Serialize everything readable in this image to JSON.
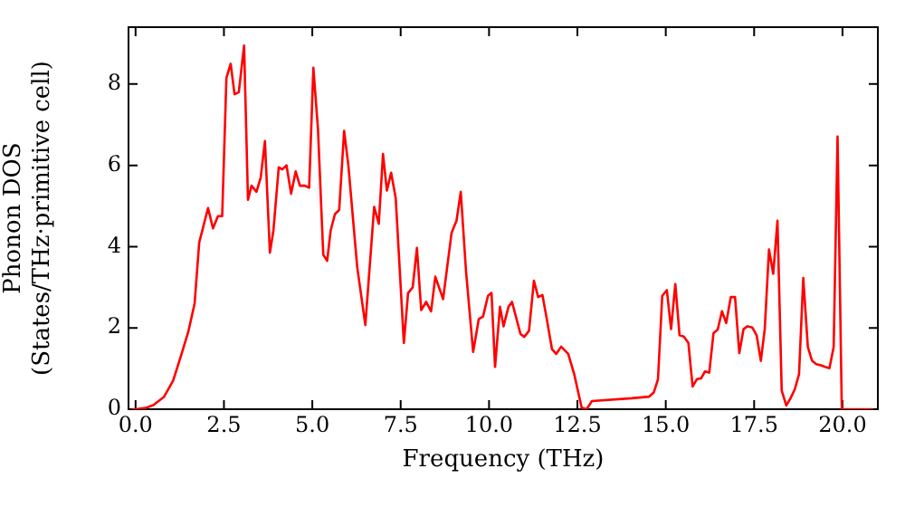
{
  "chart_data": {
    "type": "line",
    "xlabel": "Frequency (THz)",
    "ylabel": "Phonon DOS\n(States/THz·primitive cell)",
    "series": [
      {
        "color": "#ff0000",
        "x": [
          -0.1,
          0.0,
          0.28,
          0.5,
          0.8,
          1.06,
          1.28,
          1.49,
          1.67,
          1.8,
          2.05,
          2.19,
          2.33,
          2.45,
          2.57,
          2.69,
          2.8,
          2.92,
          3.07,
          3.18,
          3.28,
          3.42,
          3.54,
          3.66,
          3.8,
          3.9,
          4.05,
          4.15,
          4.27,
          4.4,
          4.53,
          4.65,
          4.79,
          4.91,
          5.03,
          5.16,
          5.31,
          5.42,
          5.52,
          5.64,
          5.76,
          5.9,
          6.02,
          6.27,
          6.5,
          6.75,
          6.88,
          7.0,
          7.11,
          7.23,
          7.36,
          7.59,
          7.71,
          7.84,
          7.96,
          8.08,
          8.22,
          8.36,
          8.48,
          8.7,
          8.94,
          9.08,
          9.2,
          9.35,
          9.55,
          9.71,
          9.83,
          9.97,
          10.07,
          10.17,
          10.31,
          10.41,
          10.55,
          10.65,
          10.89,
          11.0,
          11.13,
          11.27,
          11.39,
          11.51,
          11.64,
          11.78,
          11.9,
          12.04,
          12.24,
          12.41,
          12.62,
          12.76,
          12.91,
          14.04,
          14.53,
          14.66,
          14.78,
          14.9,
          15.03,
          15.15,
          15.27,
          15.39,
          15.51,
          15.64,
          15.76,
          15.88,
          16.0,
          16.11,
          16.23,
          16.35,
          16.47,
          16.59,
          16.71,
          16.84,
          16.96,
          17.08,
          17.2,
          17.31,
          17.45,
          17.57,
          17.69,
          17.8,
          17.92,
          18.04,
          18.16,
          18.28,
          18.41,
          18.53,
          18.65,
          18.77,
          18.89,
          19.02,
          19.14,
          19.26,
          19.39,
          19.51,
          19.63,
          19.75,
          19.86,
          19.98,
          20.86
        ],
        "values": [
          0,
          0,
          0.03,
          0.1,
          0.3,
          0.7,
          1.3,
          1.9,
          2.6,
          4.1,
          4.95,
          4.45,
          4.75,
          4.75,
          8.15,
          8.5,
          7.75,
          7.8,
          8.95,
          5.15,
          5.5,
          5.35,
          5.7,
          6.6,
          3.85,
          4.4,
          5.95,
          5.9,
          6.0,
          5.3,
          5.85,
          5.5,
          5.5,
          5.45,
          8.4,
          6.9,
          3.8,
          3.65,
          4.4,
          4.8,
          4.9,
          6.85,
          6.0,
          3.5,
          2.07,
          4.98,
          4.56,
          6.28,
          5.38,
          5.82,
          5.19,
          1.63,
          2.86,
          3.0,
          3.97,
          2.44,
          2.64,
          2.41,
          3.26,
          2.71,
          4.34,
          4.64,
          5.35,
          3.38,
          1.41,
          2.22,
          2.28,
          2.79,
          2.86,
          1.04,
          2.52,
          2.04,
          2.52,
          2.64,
          1.85,
          1.78,
          1.93,
          3.16,
          2.76,
          2.81,
          2.19,
          1.48,
          1.36,
          1.54,
          1.36,
          0.86,
          0.04,
          0,
          0.2,
          0.27,
          0.31,
          0.41,
          0.74,
          2.79,
          2.93,
          1.97,
          3.08,
          1.82,
          1.79,
          1.63,
          0.56,
          0.74,
          0.76,
          0.93,
          0.9,
          1.87,
          1.96,
          2.41,
          2.12,
          2.76,
          2.76,
          1.38,
          1.97,
          2.04,
          2.01,
          1.82,
          1.19,
          1.97,
          3.93,
          3.33,
          4.64,
          0.46,
          0.09,
          0.27,
          0.49,
          0.86,
          3.23,
          1.53,
          1.19,
          1.11,
          1.08,
          1.04,
          1.01,
          1.53,
          6.71,
          0,
          0
        ]
      }
    ],
    "xlim": [
      -0.2,
      21
    ],
    "ylim": [
      0,
      9.4
    ],
    "xticks": [
      {
        "value": 0,
        "label": "0.0"
      },
      {
        "value": 2.5,
        "label": "2.5"
      },
      {
        "value": 5,
        "label": "5.0"
      },
      {
        "value": 7.5,
        "label": "7.5"
      },
      {
        "value": 10,
        "label": "10.0"
      },
      {
        "value": 12.5,
        "label": "12.5"
      },
      {
        "value": 15,
        "label": "15.0"
      },
      {
        "value": 17.5,
        "label": "17.5"
      },
      {
        "value": 20,
        "label": "20.0"
      }
    ],
    "yticks": [
      0,
      2,
      4,
      6,
      8
    ],
    "grid": false,
    "legend": false,
    "marker": "none",
    "line_style": "solid"
  }
}
